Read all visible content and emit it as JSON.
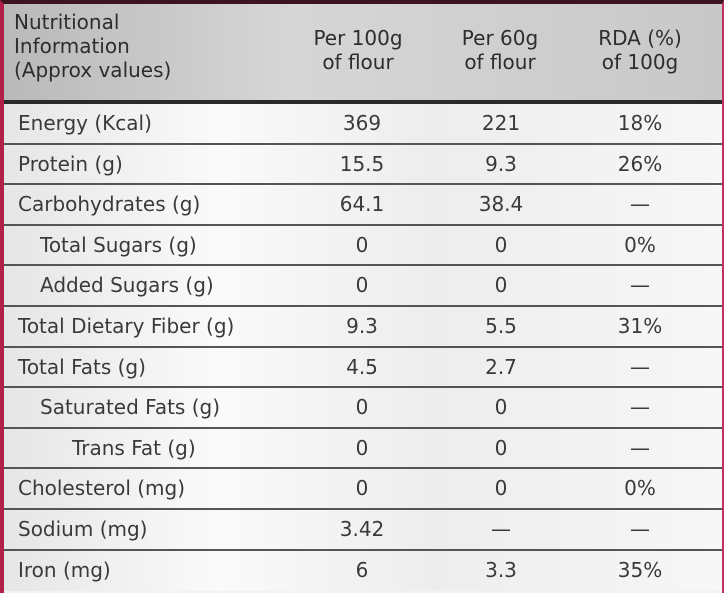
{
  "header": {
    "title_lines": [
      "Nutritional",
      "Information",
      "(Approx values)"
    ],
    "col1": [
      "Per 100g",
      "of flour"
    ],
    "col2": [
      "Per 60g",
      "of flour"
    ],
    "col3": [
      "RDA (%)",
      "of 100g"
    ]
  },
  "rows": [
    {
      "label": "Energy (Kcal)",
      "per100": "369",
      "per60": "221",
      "rda": "18%",
      "indent": 0
    },
    {
      "label": "Protein (g)",
      "per100": "15.5",
      "per60": "9.3",
      "rda": "26%",
      "indent": 0
    },
    {
      "label": "Carbohydrates (g)",
      "per100": "64.1",
      "per60": "38.4",
      "rda": "—",
      "indent": 0
    },
    {
      "label": "Total Sugars (g)",
      "per100": "0",
      "per60": "0",
      "rda": "0%",
      "indent": 1
    },
    {
      "label": "Added Sugars (g)",
      "per100": "0",
      "per60": "0",
      "rda": "—",
      "indent": 1
    },
    {
      "label": "Total Dietary Fiber (g)",
      "per100": "9.3",
      "per60": "5.5",
      "rda": "31%",
      "indent": 0
    },
    {
      "label": "Total Fats (g)",
      "per100": "4.5",
      "per60": "2.7",
      "rda": "—",
      "indent": 0
    },
    {
      "label": "Saturated Fats (g)",
      "per100": "0",
      "per60": "0",
      "rda": "—",
      "indent": 1
    },
    {
      "label": "Trans Fat (g)",
      "per100": "0",
      "per60": "0",
      "rda": "—",
      "indent": 2
    },
    {
      "label": "Cholesterol (mg)",
      "per100": "0",
      "per60": "0",
      "rda": "0%",
      "indent": 0
    },
    {
      "label": "Sodium (mg)",
      "per100": "3.42",
      "per60": "—",
      "rda": "—",
      "indent": 0
    },
    {
      "label": "Iron (mg)",
      "per100": "6",
      "per60": "3.3",
      "rda": "35%",
      "indent": 0
    }
  ]
}
